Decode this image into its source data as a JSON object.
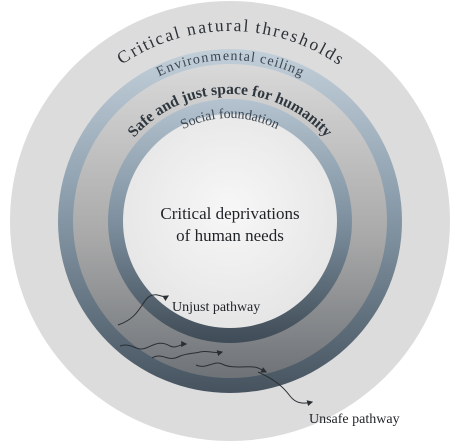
{
  "rings": {
    "outer_label": "Critical natural thresholds",
    "ceiling_label": "Environmental ceiling",
    "space_label": "Safe and just space for humanity",
    "foundation_label": "Social foundation",
    "center_line_1": "Critical deprivations",
    "center_line_2": "of human needs"
  },
  "pathways": {
    "unjust_label": "Unjust pathway",
    "unsafe_label": "Unsafe pathway"
  },
  "colors": {
    "outer_disc": "#dcdcdc",
    "boundary_band_light": "#b9c7d3",
    "boundary_band_dark": "#4d5d6b",
    "space_light": "#d8d8d8",
    "space_dark": "#6f757b",
    "center_disc": "#efefef",
    "label_text": "#3b4651",
    "arrow": "#2a2f34"
  }
}
